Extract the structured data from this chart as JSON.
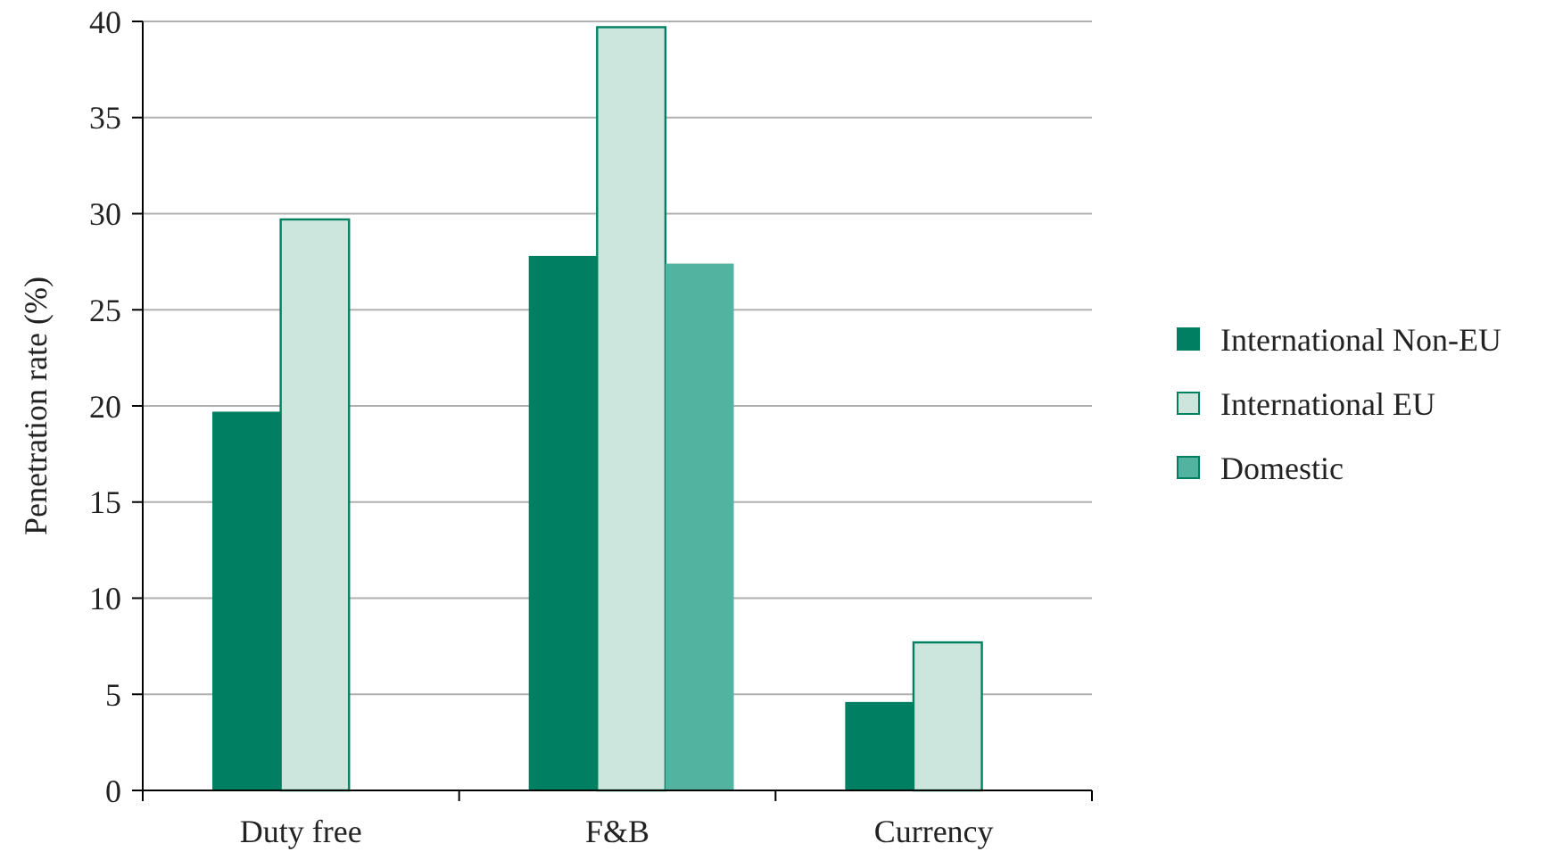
{
  "chart_data": {
    "type": "bar",
    "ylabel": "Penetration rate (%)",
    "categories": [
      "Duty free",
      "F&B",
      "Currency"
    ],
    "series": [
      {
        "name": "International Non-EU",
        "color": "#007f62",
        "values": [
          19.7,
          27.8,
          4.6
        ]
      },
      {
        "name": "International EU",
        "color": "#cce6de",
        "values": [
          29.7,
          39.7,
          7.7
        ]
      },
      {
        "name": "Domestic",
        "color": "#52b3a0",
        "values": [
          null,
          27.4,
          null
        ]
      }
    ],
    "ylim": [
      0,
      40
    ],
    "yticks": [
      0,
      5,
      10,
      15,
      20,
      25,
      30,
      35,
      40
    ],
    "grid": "y",
    "legend": "right"
  }
}
